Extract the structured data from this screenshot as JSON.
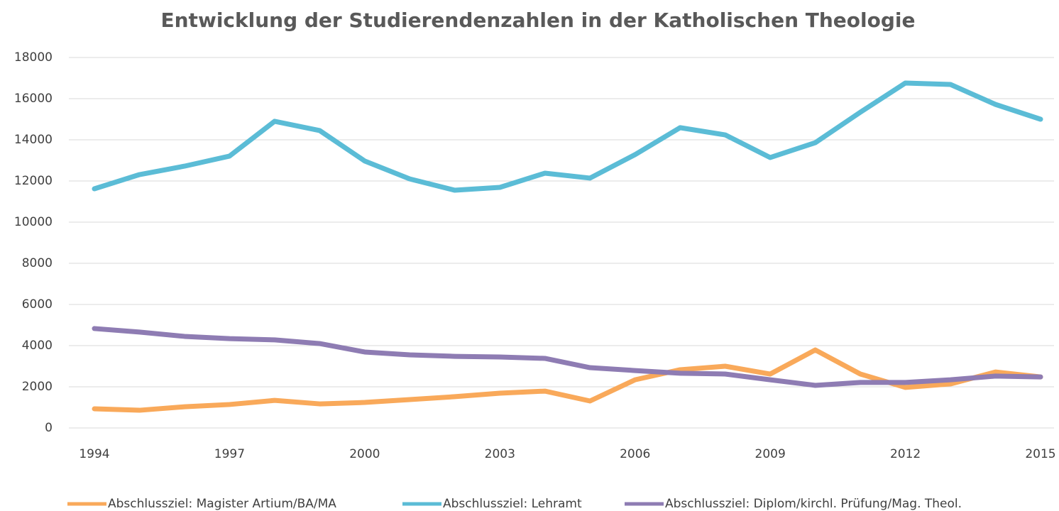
{
  "chart_data": {
    "type": "line",
    "title": "Entwicklung der Studierendenzahlen in der Katholischen Theologie",
    "x": [
      1994,
      1995,
      1996,
      1997,
      1998,
      1999,
      2000,
      2001,
      2002,
      2003,
      2004,
      2005,
      2006,
      2007,
      2008,
      2009,
      2010,
      2011,
      2012,
      2013,
      2014,
      2015
    ],
    "xlim": [
      1994,
      2015
    ],
    "xticks": [
      1994,
      1997,
      2000,
      2003,
      2006,
      2009,
      2012,
      2015
    ],
    "ylim": [
      0,
      18000
    ],
    "yticks": [
      0,
      2000,
      4000,
      6000,
      8000,
      10000,
      12000,
      14000,
      16000,
      18000
    ],
    "grid": true,
    "legend": "bottom",
    "series": [
      {
        "name": "Abschlussziel: Magister Artium/BA/MA",
        "color": "#f9a95a",
        "values": [
          930,
          860,
          1030,
          1140,
          1340,
          1170,
          1240,
          1380,
          1520,
          1690,
          1790,
          1310,
          2340,
          2830,
          3000,
          2620,
          3790,
          2620,
          1970,
          2140,
          2720,
          2480
        ]
      },
      {
        "name": "Abschlussziel: Lehramt",
        "color": "#5bbcd6",
        "values": [
          11620,
          12310,
          12720,
          13210,
          14900,
          14450,
          12970,
          12100,
          11550,
          11690,
          12380,
          12140,
          13280,
          14590,
          14240,
          13140,
          13860,
          15340,
          16760,
          16690,
          15720,
          15000
        ]
      },
      {
        "name": "Abschlussziel: Diplom/kirchl. Prüfung/Mag. Theol.",
        "color": "#8e7cb3",
        "values": [
          4830,
          4660,
          4450,
          4340,
          4280,
          4100,
          3690,
          3550,
          3480,
          3450,
          3380,
          2930,
          2790,
          2660,
          2620,
          2340,
          2070,
          2210,
          2210,
          2340,
          2520,
          2480
        ]
      }
    ]
  }
}
